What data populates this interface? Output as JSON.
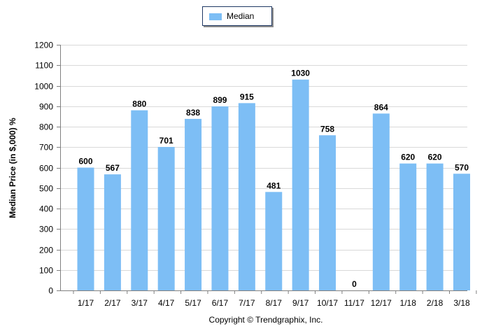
{
  "chart_data": {
    "type": "bar",
    "title": "",
    "xlabel": "",
    "ylabel": "Median Price (in $,000) %",
    "ylim": [
      0,
      1200
    ],
    "yticks": [
      0,
      100,
      200,
      300,
      400,
      500,
      600,
      700,
      800,
      900,
      1000,
      1100,
      1200
    ],
    "grid": true,
    "legend_position": "top-center",
    "categories": [
      "1/17",
      "2/17",
      "3/17",
      "4/17",
      "5/17",
      "6/17",
      "7/17",
      "8/17",
      "9/17",
      "10/17",
      "11/17",
      "12/17",
      "1/18",
      "2/18",
      "3/18"
    ],
    "series": [
      {
        "name": "Median",
        "color": "#7dbef5",
        "values": [
          600,
          567,
          880,
          701,
          838,
          899,
          915,
          481,
          1030,
          758,
          0,
          864,
          620,
          620,
          570
        ]
      }
    ]
  },
  "footer": {
    "copyright": "Copyright © Trendgraphix, Inc."
  }
}
